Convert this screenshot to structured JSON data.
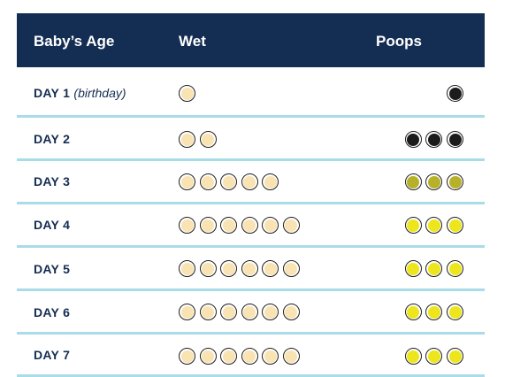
{
  "header": {
    "age": "Baby’s Age",
    "wet": "Wet",
    "poops": "Poops"
  },
  "colors": {
    "header_bg": "#142d52",
    "divider": "#a9dbe9",
    "wet": "#f9e3b2",
    "black": "#1c1c1c",
    "olive": "#b7b129",
    "yellow": "#ede61c"
  },
  "rows": [
    {
      "day": "DAY 1",
      "note": "(birthday)",
      "wet": 1,
      "poops": 1,
      "poop_color": "black"
    },
    {
      "day": "DAY 2",
      "note": "",
      "wet": 2,
      "poops": 3,
      "poop_color": "black"
    },
    {
      "day": "DAY 3",
      "note": "",
      "wet": 5,
      "poops": 3,
      "poop_color": "olive"
    },
    {
      "day": "DAY 4",
      "note": "",
      "wet": 6,
      "poops": 3,
      "poop_color": "yellow"
    },
    {
      "day": "DAY 5",
      "note": "",
      "wet": 6,
      "poops": 3,
      "poop_color": "yellow"
    },
    {
      "day": "DAY 6",
      "note": "",
      "wet": 6,
      "poops": 3,
      "poop_color": "yellow"
    },
    {
      "day": "DAY 7",
      "note": "",
      "wet": 6,
      "poops": 3,
      "poop_color": "yellow"
    }
  ]
}
